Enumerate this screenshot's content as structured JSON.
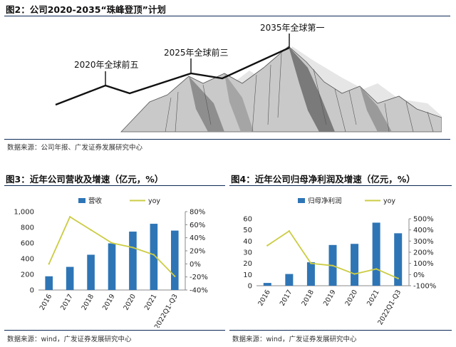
{
  "figure2": {
    "title": "图2：公司2020-2035“珠峰登顶”计划",
    "milestones": [
      "2020年全球前五",
      "2025年全球前三",
      "2035年全球第一"
    ],
    "source": "数据来源：公司年报、广发证券发展研究中心"
  },
  "figure3": {
    "title": "图3：近年公司营收及增速（亿元，%）",
    "source": "数据来源：wind，广发证券发展研究中心"
  },
  "figure4": {
    "title": "图4：近年公司归母净利润及增速（亿元，%）",
    "source": "数据来源：wind，广发证券发展研究中心"
  },
  "colors": {
    "bar": "#2e75b6",
    "line": "#cccc44",
    "rule": "#0d2a56"
  },
  "chart_data": [
    {
      "id": "revenue",
      "type": "bar",
      "categories": [
        "2016",
        "2017",
        "2018",
        "2019",
        "2020",
        "2021",
        "2022Q1-Q3"
      ],
      "series": [
        {
          "name": "营收",
          "type": "bar",
          "axis": "left",
          "values": [
            175,
            295,
            450,
            595,
            745,
            845,
            758
          ]
        },
        {
          "name": "yoy",
          "type": "line",
          "axis": "right",
          "values": [
            0.0,
            0.72,
            0.52,
            0.32,
            0.25,
            0.14,
            -0.19
          ]
        }
      ],
      "ylim": [
        0,
        1000
      ],
      "yticks": [
        0,
        200,
        400,
        600,
        800,
        1000
      ],
      "ytick_labels": [
        "0",
        "200",
        "400",
        "600",
        "800",
        "1,000"
      ],
      "y2lim": [
        -0.4,
        0.8
      ],
      "y2ticks": [
        -0.4,
        -0.2,
        0,
        0.2,
        0.4,
        0.6,
        0.8
      ],
      "y2tick_labels": [
        "-40%",
        "-20%",
        "0%",
        "20%",
        "40%",
        "60%",
        "80%"
      ],
      "legend": "top"
    },
    {
      "id": "net_profit",
      "type": "bar",
      "categories": [
        "2016",
        "2017",
        "2018",
        "2019",
        "2020",
        "2021",
        "2022Q1-Q3"
      ],
      "series": [
        {
          "name": "归母净利润",
          "type": "bar",
          "axis": "left",
          "values": [
            2.5,
            10.5,
            21,
            36.5,
            37.5,
            56.5,
            47
          ]
        },
        {
          "name": "yoy",
          "type": "line",
          "axis": "right",
          "values": [
            2.6,
            3.9,
            1.0,
            0.8,
            0.05,
            0.5,
            -0.35
          ]
        }
      ],
      "ylim": [
        0,
        60
      ],
      "yticks": [
        0,
        10,
        20,
        30,
        40,
        50,
        60
      ],
      "ytick_labels": [
        "0",
        "10",
        "20",
        "30",
        "40",
        "50",
        "60"
      ],
      "y2lim": [
        -1,
        5
      ],
      "y2ticks": [
        -1,
        0,
        1,
        2,
        3,
        4,
        5
      ],
      "y2tick_labels": [
        "-100%",
        "0%",
        "100%",
        "200%",
        "300%",
        "400%",
        "500%"
      ],
      "legend": "top"
    }
  ]
}
